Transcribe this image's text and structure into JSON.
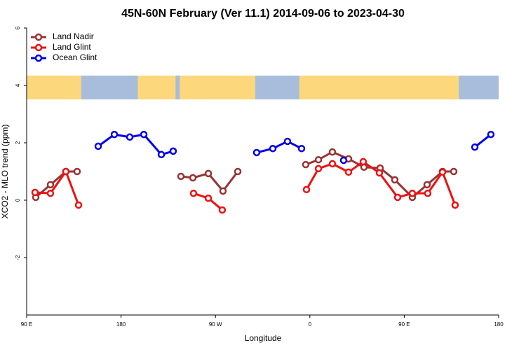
{
  "chart_data": {
    "type": "line",
    "title": "45N-60N February (Ver 11.1)   2014-09-06 to 2023-04-30",
    "xlabel": "Longitude",
    "ylabel": "XCO2 - MLO trend (ppm)",
    "xlim": [
      90,
      540
    ],
    "ylim": [
      -4,
      6
    ],
    "xticks": [
      {
        "value": 90,
        "label": "90 E"
      },
      180,
      {
        "value": 270,
        "label": "90 W"
      },
      {
        "value": 360,
        "label": "0"
      },
      {
        "value": 450,
        "label": "90 E"
      },
      {
        "value": 540,
        "label": "180"
      }
    ],
    "yticks": [
      -2,
      0,
      2,
      4,
      6
    ],
    "legend": "top-left",
    "series": [
      {
        "name": "Land Nadir",
        "color": "#993333",
        "x": [
          98.7,
          112.7,
          127.4,
          138.1,
          null,
          237.1,
          248.5,
          263.2,
          277.2,
          291.3,
          null,
          356.1,
          368.2,
          381.5,
          396.9,
          411.6,
          427,
          441,
          457.7,
          471.8,
          486.5,
          497.2
        ],
        "values": [
          0.1,
          0.54,
          1.0,
          1.0,
          null,
          0.83,
          0.78,
          0.93,
          0.32,
          1.0,
          null,
          1.24,
          1.41,
          1.68,
          1.44,
          1.15,
          1.12,
          0.71,
          0.1,
          0.54,
          1.0,
          1.0
        ]
      },
      {
        "name": "Land Glint",
        "color": "#ee1111",
        "x": [
          98.0,
          112.7,
          127.4,
          139.5,
          null,
          249.1,
          263.2,
          276.5,
          null,
          356.8,
          368.2,
          381.5,
          396.9,
          410.9,
          426.3,
          443.7,
          457.7,
          472.4,
          486.5,
          498.5
        ],
        "values": [
          0.27,
          0.24,
          1.0,
          -0.17,
          null,
          0.24,
          0.07,
          -0.34,
          null,
          0.37,
          1.1,
          1.27,
          0.98,
          1.34,
          0.95,
          0.1,
          0.24,
          0.24,
          0.98,
          -0.17
        ]
      },
      {
        "name": "Ocean Glint",
        "color": "#0000ee",
        "x": [
          158.2,
          173.6,
          188.3,
          201.7,
          218.4,
          229.7,
          null,
          309.3,
          324.7,
          338.7,
          352.1,
          null,
          392.2,
          null,
          517.3,
          532.6
        ],
        "values": [
          1.88,
          2.29,
          2.2,
          2.29,
          1.59,
          1.71,
          null,
          1.66,
          1.8,
          2.05,
          1.8,
          null,
          1.39,
          null,
          1.85,
          2.29
        ]
      }
    ]
  }
}
